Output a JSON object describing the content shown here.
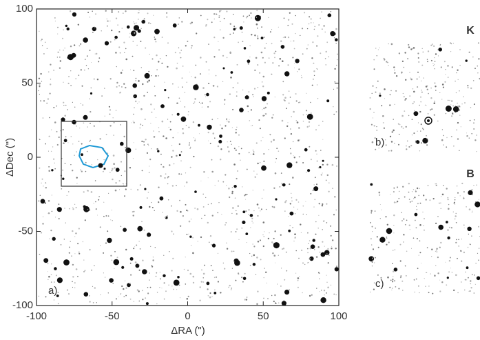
{
  "chart_data": {
    "type": "image",
    "xlabel": "ΔRA (\")",
    "ylabel": "ΔDec (\")",
    "xlim": [
      -100,
      100
    ],
    "ylim": [
      -100,
      100
    ],
    "xticks": [
      -100,
      -50,
      0,
      50,
      100
    ],
    "yticks": [
      -100,
      -50,
      0,
      50,
      100
    ],
    "panels": [
      {
        "label": "a)"
      },
      {
        "label": "b)",
        "band": "K"
      },
      {
        "label": "c)",
        "band": "B"
      }
    ]
  }
}
